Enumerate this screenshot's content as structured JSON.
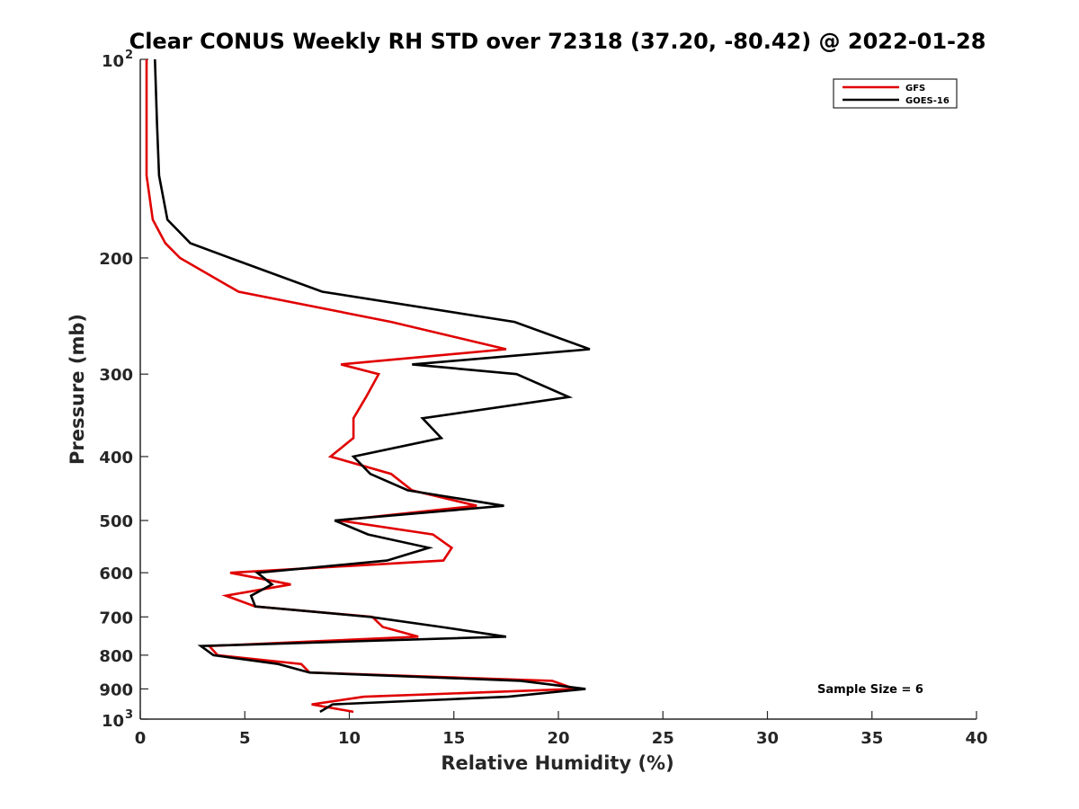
{
  "chart_data": {
    "type": "line",
    "title": "Clear CONUS Weekly RH STD over 72318 (37.20, -80.42) @ 2022-01-28",
    "xlabel": "Relative Humidity (%)",
    "ylabel": "Pressure (mb)",
    "xlim": [
      0,
      40
    ],
    "ylim": [
      100,
      1000
    ],
    "y_scale": "log",
    "y_reversed": true,
    "x_ticks": [
      "0",
      "5",
      "10",
      "15",
      "20",
      "25",
      "30",
      "35",
      "40"
    ],
    "y_ticks": [
      {
        "value": 100,
        "base": "10",
        "exp": "2"
      },
      {
        "value": 200,
        "label": "200"
      },
      {
        "value": 300,
        "label": "300"
      },
      {
        "value": 400,
        "label": "400"
      },
      {
        "value": 500,
        "label": "500"
      },
      {
        "value": 600,
        "label": "600"
      },
      {
        "value": 700,
        "label": "700"
      },
      {
        "value": 800,
        "label": "800"
      },
      {
        "value": 900,
        "label": "900"
      },
      {
        "value": 1000,
        "base": "10",
        "exp": "3"
      }
    ],
    "legend_position": "top-right",
    "annotation": "Sample Size = 6",
    "series": [
      {
        "name": "GFS",
        "color": "#e00000",
        "points": [
          [
            0.3,
            100
          ],
          [
            0.3,
            125
          ],
          [
            0.3,
            150
          ],
          [
            0.6,
            175
          ],
          [
            1.2,
            190
          ],
          [
            1.9,
            200
          ],
          [
            4.7,
            225
          ],
          [
            12.0,
            250
          ],
          [
            17.5,
            275
          ],
          [
            9.6,
            290
          ],
          [
            11.4,
            300
          ],
          [
            10.8,
            325
          ],
          [
            10.2,
            350
          ],
          [
            10.2,
            375
          ],
          [
            9.1,
            400
          ],
          [
            12.0,
            425
          ],
          [
            13.0,
            450
          ],
          [
            16.1,
            475
          ],
          [
            9.5,
            500
          ],
          [
            14.0,
            525
          ],
          [
            14.9,
            550
          ],
          [
            14.5,
            575
          ],
          [
            4.3,
            600
          ],
          [
            7.2,
            625
          ],
          [
            4.1,
            650
          ],
          [
            5.5,
            675
          ],
          [
            11.1,
            700
          ],
          [
            11.6,
            725
          ],
          [
            13.3,
            750
          ],
          [
            3.3,
            775
          ],
          [
            3.7,
            800
          ],
          [
            7.7,
            825
          ],
          [
            8.1,
            850
          ],
          [
            19.7,
            875
          ],
          [
            20.8,
            900
          ],
          [
            10.7,
            925
          ],
          [
            8.2,
            950
          ],
          [
            10.2,
            975
          ]
        ]
      },
      {
        "name": "GOES-16",
        "color": "#000000",
        "points": [
          [
            0.7,
            100
          ],
          [
            0.8,
            125
          ],
          [
            0.9,
            150
          ],
          [
            1.3,
            175
          ],
          [
            2.4,
            190
          ],
          [
            4.3,
            200
          ],
          [
            8.7,
            225
          ],
          [
            17.9,
            250
          ],
          [
            21.5,
            275
          ],
          [
            13.0,
            290
          ],
          [
            18.0,
            300
          ],
          [
            20.5,
            325
          ],
          [
            13.5,
            350
          ],
          [
            14.4,
            375
          ],
          [
            10.2,
            400
          ],
          [
            11.0,
            425
          ],
          [
            12.8,
            450
          ],
          [
            17.4,
            475
          ],
          [
            9.3,
            500
          ],
          [
            10.9,
            525
          ],
          [
            13.8,
            550
          ],
          [
            11.8,
            575
          ],
          [
            5.6,
            600
          ],
          [
            6.3,
            625
          ],
          [
            5.3,
            650
          ],
          [
            5.5,
            675
          ],
          [
            11.0,
            700
          ],
          [
            14.4,
            725
          ],
          [
            17.5,
            750
          ],
          [
            2.9,
            775
          ],
          [
            3.5,
            800
          ],
          [
            6.6,
            825
          ],
          [
            8.1,
            850
          ],
          [
            18.2,
            875
          ],
          [
            21.3,
            900
          ],
          [
            17.6,
            925
          ],
          [
            9.2,
            950
          ],
          [
            8.6,
            975
          ]
        ]
      }
    ]
  }
}
